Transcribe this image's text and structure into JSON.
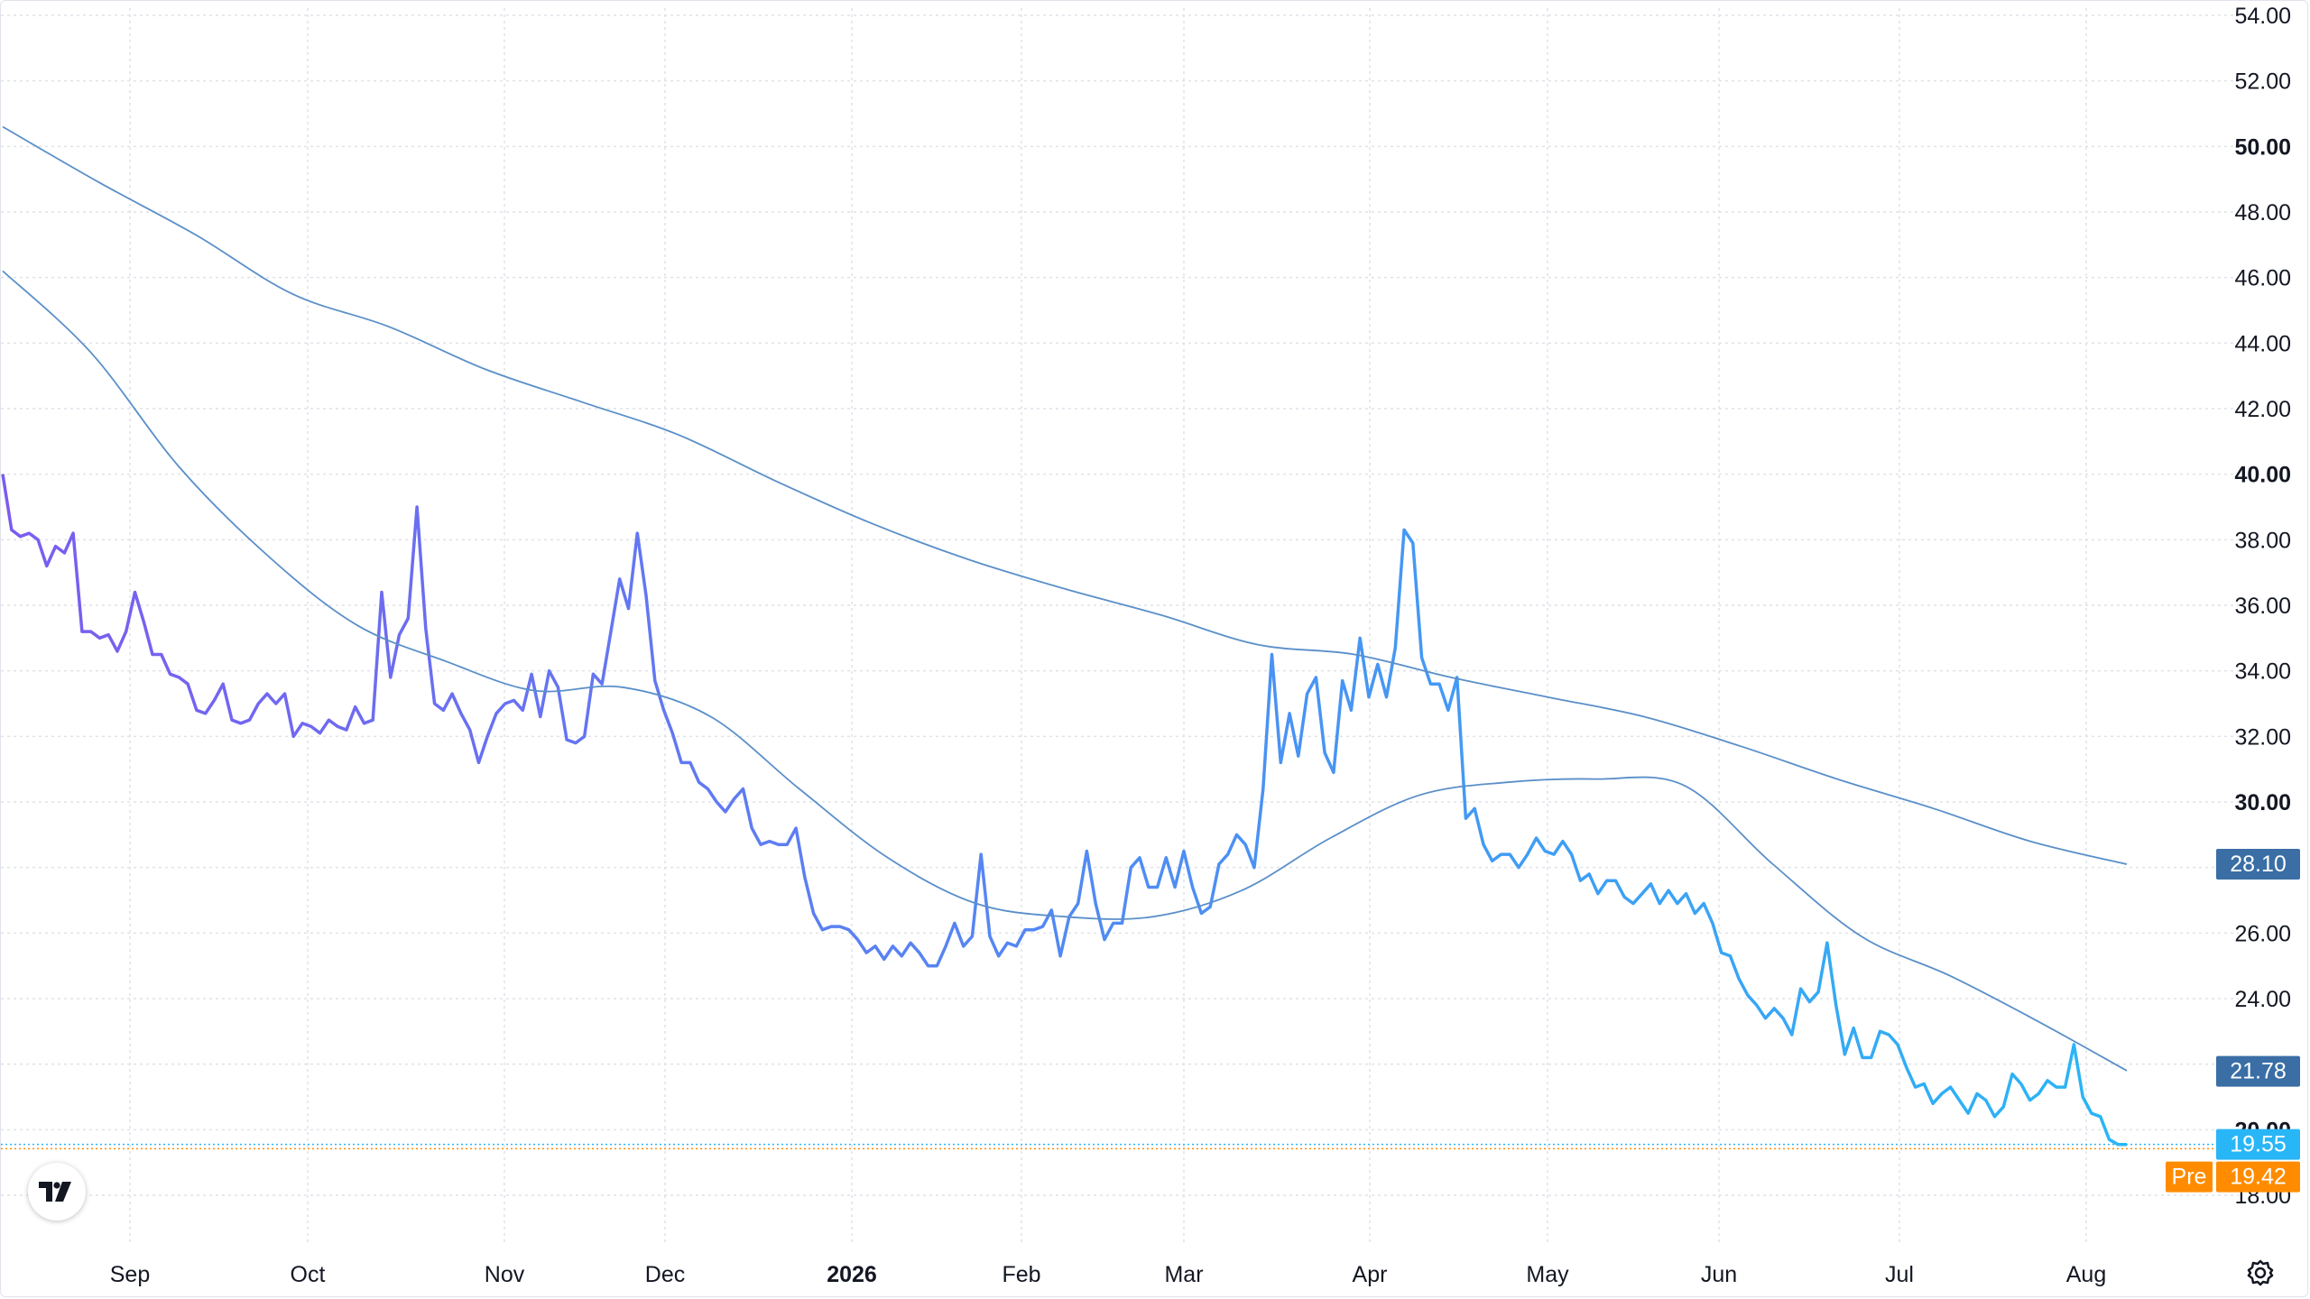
{
  "chart_data": {
    "type": "line",
    "x_axis": {
      "labels": [
        "Sep",
        "Oct",
        "Nov",
        "Dec",
        "2026",
        "Feb",
        "Mar",
        "Apr",
        "May",
        "Jun",
        "Jul",
        "Aug"
      ],
      "bold_labels": [
        "2026"
      ]
    },
    "y_axis": {
      "ticks": [
        "54.00",
        "52.00",
        "50.00",
        "48.00",
        "46.00",
        "44.00",
        "42.00",
        "40.00",
        "38.00",
        "36.00",
        "34.00",
        "32.00",
        "30.00",
        "28.00",
        "26.00",
        "24.00",
        "22.00",
        "20.00",
        "18.00"
      ],
      "bold_ticks": [
        "50.00",
        "40.00",
        "30.00",
        "20.00"
      ],
      "ylim": [
        17.0,
        54.5
      ],
      "position": "right",
      "grid": true
    },
    "series": [
      {
        "role": "price",
        "values": [
          40.0,
          38.3,
          38.1,
          38.2,
          38.0,
          37.2,
          37.8,
          37.6,
          38.2,
          35.2,
          35.2,
          35.0,
          35.1,
          34.6,
          35.2,
          36.4,
          35.5,
          34.5,
          34.5,
          33.9,
          33.8,
          33.6,
          32.8,
          32.7,
          33.1,
          33.6,
          32.5,
          32.4,
          32.5,
          33.0,
          33.3,
          33.0,
          33.3,
          32.0,
          32.4,
          32.3,
          32.1,
          32.5,
          32.3,
          32.2,
          32.9,
          32.4,
          32.5,
          36.4,
          33.8,
          35.1,
          35.6,
          39.0,
          35.3,
          33.0,
          32.8,
          33.3,
          32.7,
          32.2,
          31.2,
          32.0,
          32.7,
          33.0,
          33.1,
          32.8,
          33.9,
          32.6,
          34.0,
          33.5,
          31.9,
          31.8,
          32.0,
          33.9,
          33.6,
          35.2,
          36.8,
          35.9,
          38.2,
          36.3,
          33.7,
          32.8,
          32.1,
          31.2,
          31.2,
          30.6,
          30.4,
          30.0,
          29.7,
          30.1,
          30.4,
          29.2,
          28.7,
          28.8,
          28.7,
          28.7,
          29.2,
          27.7,
          26.6,
          26.1,
          26.2,
          26.2,
          26.1,
          25.8,
          25.4,
          25.6,
          25.2,
          25.6,
          25.3,
          25.7,
          25.4,
          25.0,
          25.0,
          25.6,
          26.3,
          25.6,
          25.9,
          28.4,
          25.9,
          25.3,
          25.7,
          25.6,
          26.1,
          26.1,
          26.2,
          26.7,
          25.3,
          26.5,
          26.9,
          28.5,
          26.9,
          25.8,
          26.3,
          26.3,
          28.0,
          28.3,
          27.4,
          27.4,
          28.3,
          27.4,
          28.5,
          27.4,
          26.6,
          26.8,
          28.1,
          28.4,
          29.0,
          28.7,
          28.0,
          30.4,
          34.5,
          31.2,
          32.7,
          31.4,
          33.3,
          33.8,
          31.5,
          30.9,
          33.7,
          32.8,
          35.0,
          33.2,
          34.2,
          33.2,
          34.7,
          38.3,
          37.9,
          34.4,
          33.6,
          33.6,
          32.8,
          33.8,
          29.5,
          29.8,
          28.7,
          28.2,
          28.4,
          28.4,
          28.0,
          28.4,
          28.9,
          28.5,
          28.4,
          28.8,
          28.4,
          27.6,
          27.8,
          27.2,
          27.6,
          27.6,
          27.1,
          26.9,
          27.2,
          27.5,
          26.9,
          27.3,
          26.9,
          27.2,
          26.6,
          26.9,
          26.3,
          25.4,
          25.3,
          24.6,
          24.1,
          23.8,
          23.4,
          23.7,
          23.4,
          22.9,
          24.3,
          23.9,
          24.2,
          25.7,
          23.8,
          22.3,
          23.1,
          22.2,
          22.2,
          23.0,
          22.9,
          22.6,
          21.9,
          21.3,
          21.4,
          20.8,
          21.1,
          21.3,
          20.9,
          20.5,
          21.1,
          20.9,
          20.4,
          20.7,
          21.7,
          21.4,
          20.9,
          21.1,
          21.5,
          21.3,
          21.3,
          22.6,
          21.0,
          20.5,
          20.4,
          19.7,
          19.55,
          19.55
        ],
        "color_start": "#7b5cf0",
        "color_end": "#29b6f6"
      },
      {
        "role": "moving-average-long",
        "values": [
          50.6,
          48.9,
          47.3,
          45.5,
          44.5,
          43.2,
          42.2,
          41.2,
          39.8,
          38.5,
          37.4,
          36.5,
          35.7,
          34.8,
          34.5,
          33.8,
          33.2,
          32.6,
          31.7,
          30.7,
          29.8,
          28.8,
          28.1
        ],
        "color": "#5a8fc9"
      },
      {
        "role": "moving-average-short",
        "values": [
          46.2,
          43.7,
          40.2,
          37.5,
          35.4,
          34.3,
          33.4,
          33.5,
          32.6,
          30.4,
          28.3,
          26.9,
          26.5,
          26.5,
          27.3,
          28.9,
          30.2,
          30.6,
          30.7,
          30.5,
          28.1,
          25.9,
          24.7,
          23.3,
          21.8
        ],
        "color": "#5a8fc9"
      }
    ],
    "price_labels": [
      {
        "text": "28.10",
        "value": 28.1,
        "color": "#3a6ea5"
      },
      {
        "text": "21.78",
        "value": 21.78,
        "color": "#3a6ea5"
      },
      {
        "text": "19.55",
        "value": 19.55,
        "color": "#29b6f6"
      },
      {
        "text": "19.42",
        "value": 19.42,
        "prefix": "Pre",
        "color": "#ff8c00"
      }
    ]
  },
  "icons": {
    "logo": "tradingview-logo-icon",
    "settings": "settings-gear-icon"
  }
}
